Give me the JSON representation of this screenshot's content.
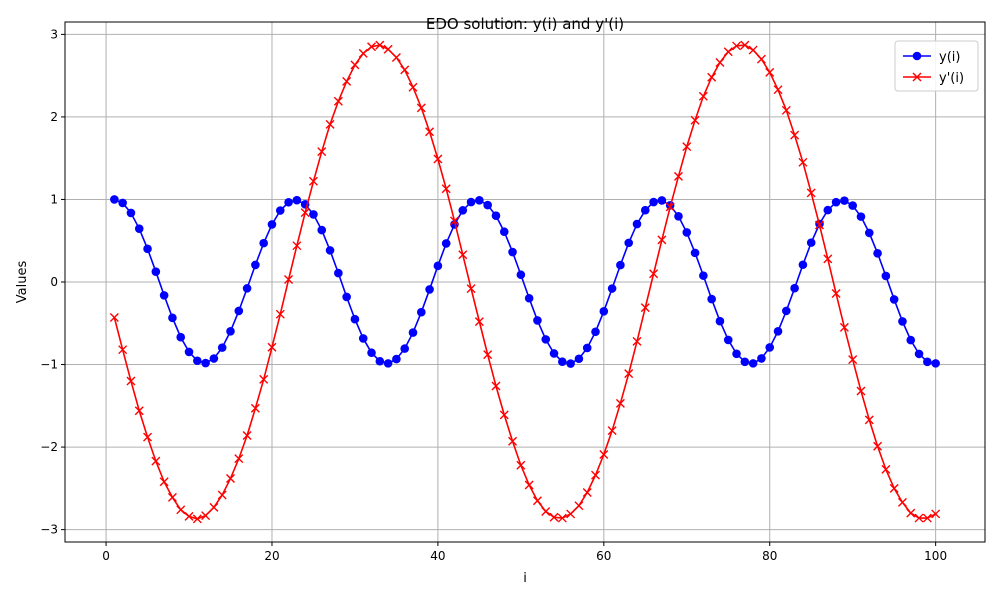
{
  "chart_data": {
    "type": "line",
    "title": "EDO solution: y(i) and y'(i)",
    "xlabel": "i",
    "ylabel": "Values",
    "xlim": [
      -4.95,
      105.95
    ],
    "ylim": [
      -3.15,
      3.15
    ],
    "xticks": [
      0,
      20,
      40,
      60,
      80,
      100
    ],
    "yticks": [
      -3,
      -2,
      -1,
      0,
      1,
      2,
      3
    ],
    "ytick_labels": [
      "−3",
      "−2",
      "−1",
      "0",
      "1",
      "2",
      "3"
    ],
    "grid": true,
    "legend_position": "top-right",
    "series": [
      {
        "name": "y(i)",
        "color": "#0000ff",
        "marker": "circle",
        "x": [
          1,
          2,
          3,
          4,
          5,
          6,
          7,
          8,
          9,
          10,
          11,
          12,
          13,
          14,
          15,
          16,
          17,
          18,
          19,
          20,
          21,
          22,
          23,
          24,
          25,
          26,
          27,
          28,
          29,
          30,
          31,
          32,
          33,
          34,
          35,
          36,
          37,
          38,
          39,
          40,
          41,
          42,
          43,
          44,
          45,
          46,
          47,
          48,
          49,
          50,
          51,
          52,
          53,
          54,
          55,
          56,
          57,
          58,
          59,
          60,
          61,
          62,
          63,
          64,
          65,
          66,
          67,
          68,
          69,
          70,
          71,
          72,
          73,
          74,
          75,
          76,
          77,
          78,
          79,
          80,
          81,
          82,
          83,
          84,
          85,
          86,
          87,
          88,
          89,
          90,
          91,
          92,
          93,
          94,
          95,
          96,
          97,
          98,
          99,
          100
        ],
        "y": [
          1.0,
          0.958,
          0.837,
          0.646,
          0.402,
          0.125,
          -0.162,
          -0.434,
          -0.669,
          -0.847,
          -0.954,
          -0.982,
          -0.927,
          -0.795,
          -0.597,
          -0.351,
          -0.077,
          0.207,
          0.471,
          0.697,
          0.866,
          0.966,
          0.991,
          0.941,
          0.819,
          0.629,
          0.383,
          0.108,
          -0.181,
          -0.451,
          -0.684,
          -0.857,
          -0.96,
          -0.986,
          -0.934,
          -0.807,
          -0.613,
          -0.366,
          -0.09,
          0.196,
          0.467,
          0.697,
          0.868,
          0.968,
          0.99,
          0.932,
          0.803,
          0.609,
          0.363,
          0.088,
          -0.197,
          -0.466,
          -0.695,
          -0.866,
          -0.966,
          -0.988,
          -0.93,
          -0.799,
          -0.603,
          -0.355,
          -0.079,
          0.205,
          0.474,
          0.702,
          0.87,
          0.968,
          0.988,
          0.929,
          0.796,
          0.6,
          0.353,
          0.077,
          -0.207,
          -0.475,
          -0.702,
          -0.87,
          -0.967,
          -0.986,
          -0.926,
          -0.793,
          -0.597,
          -0.35,
          -0.075,
          0.209,
          0.477,
          0.704,
          0.871,
          0.967,
          0.986,
          0.926,
          0.792,
          0.595,
          0.348,
          0.073,
          -0.211,
          -0.478,
          -0.704,
          -0.871,
          -0.967,
          -0.986
        ]
      },
      {
        "name": "y'(i)",
        "color": "#ff0000",
        "marker": "x",
        "x": [
          1,
          2,
          3,
          4,
          5,
          6,
          7,
          8,
          9,
          10,
          11,
          12,
          13,
          14,
          15,
          16,
          17,
          18,
          19,
          20,
          21,
          22,
          23,
          24,
          25,
          26,
          27,
          28,
          29,
          30,
          31,
          32,
          33,
          34,
          35,
          36,
          37,
          38,
          39,
          40,
          41,
          42,
          43,
          44,
          45,
          46,
          47,
          48,
          49,
          50,
          51,
          52,
          53,
          54,
          55,
          56,
          57,
          58,
          59,
          60,
          61,
          62,
          63,
          64,
          65,
          66,
          67,
          68,
          69,
          70,
          71,
          72,
          73,
          74,
          75,
          76,
          77,
          78,
          79,
          80,
          81,
          82,
          83,
          84,
          85,
          86,
          87,
          88,
          89,
          90,
          91,
          92,
          93,
          94,
          95,
          96,
          97,
          98,
          99,
          100
        ],
        "y": [
          -0.43,
          -0.82,
          -1.2,
          -1.56,
          -1.88,
          -2.17,
          -2.42,
          -2.61,
          -2.76,
          -2.84,
          -2.87,
          -2.83,
          -2.73,
          -2.58,
          -2.38,
          -2.14,
          -1.86,
          -1.53,
          -1.18,
          -0.79,
          -0.39,
          0.03,
          0.44,
          0.84,
          1.22,
          1.58,
          1.91,
          2.19,
          2.43,
          2.63,
          2.77,
          2.85,
          2.87,
          2.82,
          2.72,
          2.57,
          2.36,
          2.11,
          1.82,
          1.49,
          1.13,
          0.74,
          0.33,
          -0.08,
          -0.48,
          -0.88,
          -1.26,
          -1.61,
          -1.93,
          -2.22,
          -2.46,
          -2.65,
          -2.78,
          -2.85,
          -2.86,
          -2.81,
          -2.71,
          -2.55,
          -2.34,
          -2.09,
          -1.8,
          -1.47,
          -1.11,
          -0.72,
          -0.31,
          0.1,
          0.51,
          0.91,
          1.28,
          1.64,
          1.96,
          2.25,
          2.48,
          2.66,
          2.79,
          2.86,
          2.87,
          2.81,
          2.7,
          2.54,
          2.33,
          2.08,
          1.78,
          1.45,
          1.08,
          0.69,
          0.28,
          -0.14,
          -0.55,
          -0.94,
          -1.32,
          -1.67,
          -1.99,
          -2.27,
          -2.5,
          -2.67,
          -2.8,
          -2.86,
          -2.86,
          -2.81
        ]
      }
    ]
  }
}
